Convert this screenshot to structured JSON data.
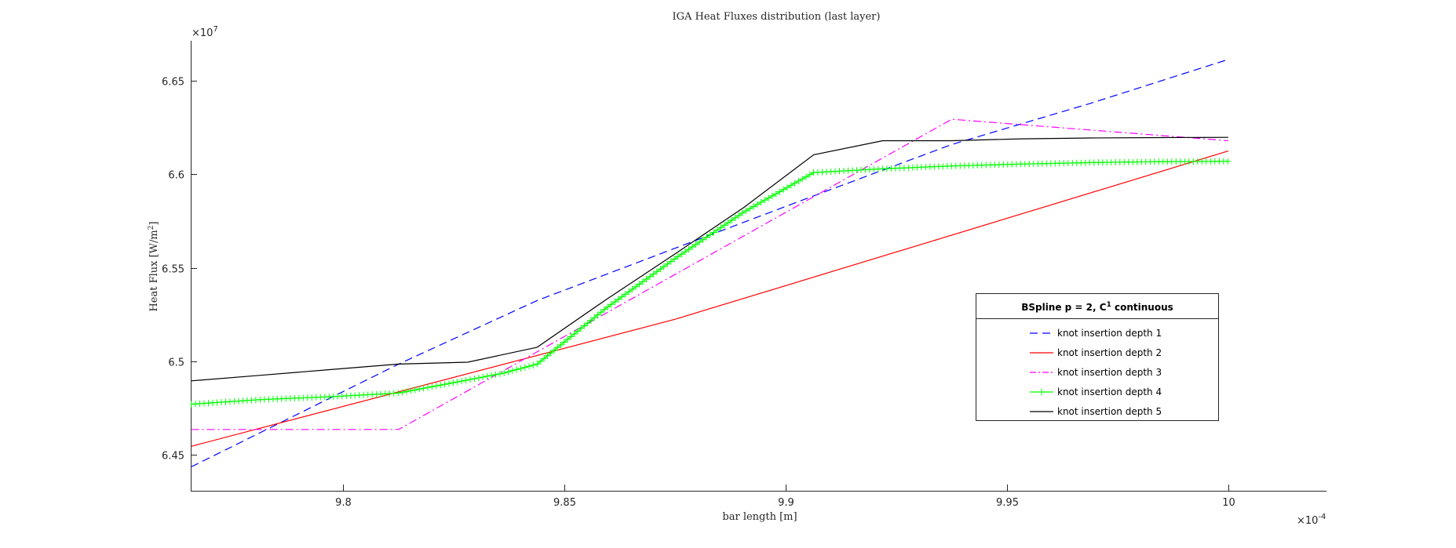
{
  "chart_data": {
    "type": "line",
    "title": "IGA Heat Fluxes distribution (last layer)",
    "xlabel": "bar length [m]",
    "ylabel": "Heat Flux [W/m^2]",
    "x_multiplier": "×10",
    "x_multiplier_exp": "-4",
    "y_multiplier": "×10",
    "y_multiplier_exp": "7",
    "xlim": [
      9.7655,
      10.0222
    ],
    "ylim": [
      6.4307,
      6.6715
    ],
    "xticks": [
      9.8,
      9.85,
      9.9,
      9.95,
      10
    ],
    "xtick_labels": [
      "9.8",
      "9.85",
      "9.9",
      "9.95",
      "10"
    ],
    "yticks": [
      6.45,
      6.5,
      6.55,
      6.6,
      6.65
    ],
    "ytick_labels": [
      "6.45",
      "6.5",
      "6.55",
      "6.6",
      "6.65"
    ],
    "grid": false,
    "legend": {
      "title_prefix": "BSpline p = 2, C",
      "title_sup": "1",
      "title_suffix": " continuous",
      "placement": "lower-right"
    },
    "series": [
      {
        "name": "knot insertion depth 1",
        "color": "#0000ff",
        "style": "dashed",
        "x": [
          9.7656,
          9.8125,
          9.8438,
          9.875,
          9.9063,
          9.9375,
          9.9688,
          10.0
        ],
        "y": [
          6.4435,
          6.4985,
          6.5325,
          6.5605,
          6.5885,
          6.616,
          6.638,
          6.6615
        ]
      },
      {
        "name": "knot insertion depth 2",
        "color": "#ff0000",
        "style": "solid",
        "x": [
          9.7656,
          9.875,
          10.0
        ],
        "y": [
          6.4545,
          6.5225,
          6.6125
        ]
      },
      {
        "name": "knot insertion depth 3",
        "color": "#ff00ff",
        "style": "dashdot",
        "x": [
          9.7656,
          9.8125,
          9.9375,
          10.0
        ],
        "y": [
          6.4635,
          6.4635,
          6.6295,
          6.618
        ]
      },
      {
        "name": "knot insertion depth 4",
        "color": "#00ff00",
        "style": "solid",
        "marker": "+",
        "x": [
          9.7656,
          9.7813,
          9.7969,
          9.8125,
          9.8281,
          9.8359,
          9.8438,
          9.8516,
          9.8594,
          9.875,
          9.8906,
          9.9063,
          9.9219,
          9.9375,
          9.9531,
          9.9688,
          9.9844,
          10.0
        ],
        "y": [
          6.477,
          6.4795,
          6.481,
          6.483,
          6.49,
          6.4935,
          6.4985,
          6.5135,
          6.5285,
          6.555,
          6.58,
          6.601,
          6.603,
          6.6045,
          6.6055,
          6.6063,
          6.6068,
          6.607
        ]
      },
      {
        "name": "knot insertion depth 5",
        "color": "#000000",
        "style": "solid",
        "x": [
          9.7656,
          9.7813,
          9.7969,
          9.8125,
          9.8281,
          9.8438,
          9.8594,
          9.875,
          9.8906,
          9.9063,
          9.9219,
          9.9375,
          9.9531,
          9.9688,
          9.9844,
          10.0
        ],
        "y": [
          6.4895,
          6.4925,
          6.4955,
          6.4985,
          6.4995,
          6.5075,
          6.533,
          6.5575,
          6.5825,
          6.6105,
          6.618,
          6.618,
          6.619,
          6.6195,
          6.6197,
          6.6198
        ]
      }
    ]
  }
}
